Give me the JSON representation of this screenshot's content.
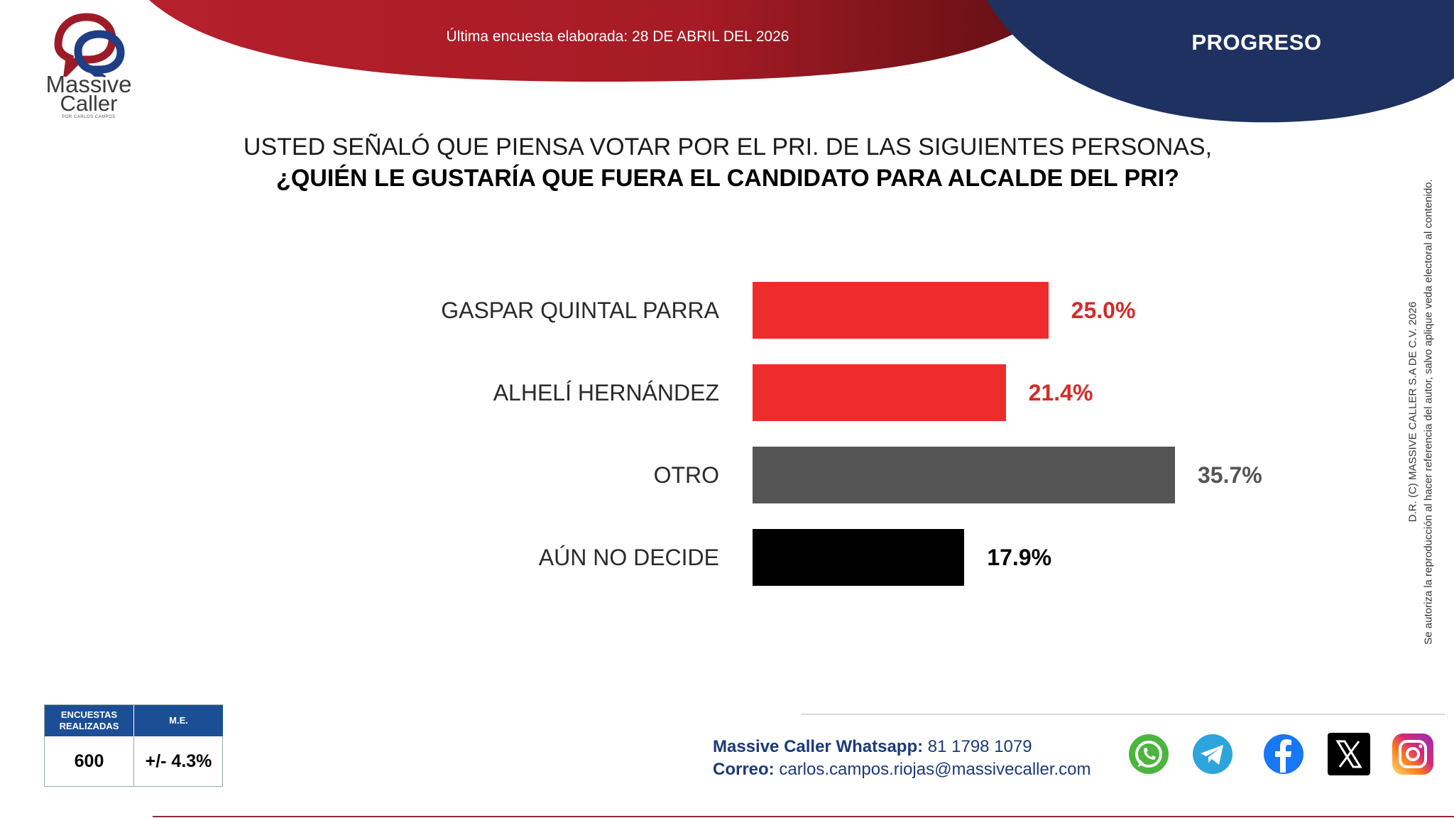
{
  "header": {
    "date_text": "Última encuesta elaborada: 28 DE ABRIL DEL 2026",
    "region": "PROGRESO"
  },
  "logo": {
    "word1": "Massive",
    "word2": "Caller",
    "tagline": "POR CARLOS CAMPOS"
  },
  "question": {
    "line1": "USTED SEÑALÓ QUE PIENSA VOTAR POR EL PRI. DE LAS SIGUIENTES PERSONAS,",
    "line2": "¿QUIÉN LE GUSTARÍA QUE FUERA EL CANDIDATO PARA ALCALDE DEL PRI?"
  },
  "chart_data": {
    "type": "bar",
    "orientation": "horizontal",
    "title": "USTED SEÑALÓ QUE PIENSA VOTAR POR EL PRI. DE LAS SIGUIENTES PERSONAS, ¿QUIÉN LE GUSTARÍA QUE FUERA EL CANDIDATO PARA ALCALDE DEL PRI?",
    "categories": [
      "GASPAR QUINTAL PARRA",
      "ALHELÍ HERNÁNDEZ",
      "OTRO",
      "AÚN NO DECIDE"
    ],
    "values": [
      25.0,
      21.4,
      35.7,
      17.9
    ],
    "value_labels": [
      "25.0%",
      "21.4%",
      "35.7%",
      "17.9%"
    ],
    "colors": [
      "#ee2c2c",
      "#ee2c2c",
      "#555555",
      "#000000"
    ],
    "label_colors": [
      "#d42a2a",
      "#d42a2a",
      "#555555",
      "#000000"
    ],
    "xlim": [
      0,
      35.7
    ],
    "xlabel": "",
    "ylabel": "",
    "grid": false
  },
  "stats": {
    "h1": "ENCUESTAS REALIZADAS",
    "h2": "M.E.",
    "v1": "600",
    "v2": "+/- 4.3%"
  },
  "contact": {
    "whatsapp_label": "Massive Caller Whatsapp:",
    "whatsapp_value": " 81 1798 1079",
    "email_label": "Correo:",
    "email_value": " carlos.campos.riojas@massivecaller.com"
  },
  "disclaimer": {
    "line1": "D.R. (C) MASSIVE CALLER S.A DE C.V. 2026",
    "line2": "Se autoriza la reproducción al hacer referencia del autor, salvo aplique veda electoral al contenido."
  },
  "colors": {
    "red": "#b01f2a",
    "navy": "#1e3160",
    "stats_blue": "#1b4e95"
  }
}
